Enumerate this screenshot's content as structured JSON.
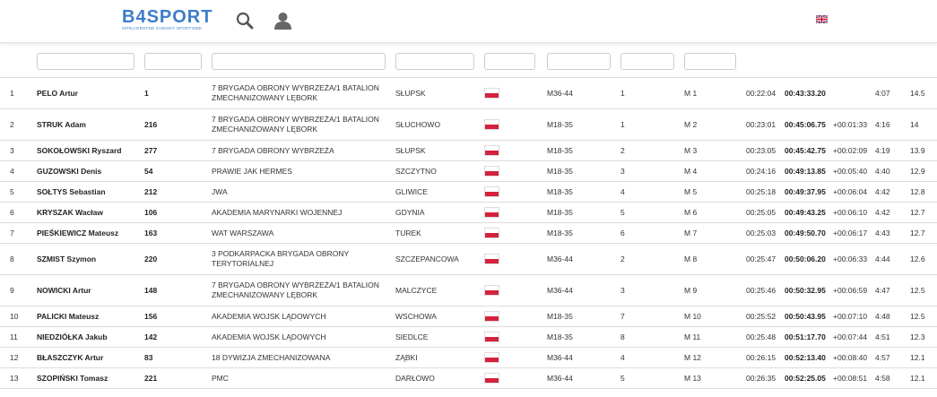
{
  "header": {
    "logo": "B4SPORT",
    "tagline": "INTELIGENTNE ZAWODY SPORTOWE"
  },
  "table": {
    "rows": [
      {
        "place": "1",
        "name": "PELO Artur",
        "bib": "1",
        "team": "7 BRYGADA OBRONY WYBRZEŻA/1 BATALION ZMECHANIZOWANY LĘBORK",
        "city": "SŁUPSK",
        "category": "M36-44",
        "category_place": "1",
        "gender_place": "M 1",
        "split": "00:22:04",
        "time": "00:43:33.20",
        "pace": "4:07",
        "speed": "14.5"
      },
      {
        "place": "2",
        "name": "STRUK Adam",
        "bib": "216",
        "team": "7 BRYGADA OBRONY WYBRZEŻA/1 BATALION ZMECHANIZOWANY LĘBORK",
        "city": "SŁUCHOWO",
        "category": "M18-35",
        "category_place": "1",
        "gender_place": "M 2",
        "split": "00:23:01",
        "time": "00:45:06.75",
        "gap": "+00:01:33",
        "pace": "4:16",
        "speed": "14"
      },
      {
        "place": "3",
        "name": "SOKOŁOWSKI Ryszard",
        "bib": "277",
        "team": "7 BRYGADA OBRONY WYBRZEŻA",
        "city": "SŁUPSK",
        "category": "M18-35",
        "category_place": "2",
        "gender_place": "M 3",
        "split": "00:23:05",
        "time": "00:45:42.75",
        "gap": "+00:02:09",
        "pace": "4:19",
        "speed": "13.9"
      },
      {
        "place": "4",
        "name": "GUZOWSKI Denis",
        "bib": "54",
        "team": "PRAWIE JAK HERMES",
        "city": "SZCZYTNO",
        "category": "M18-35",
        "category_place": "3",
        "gender_place": "M 4",
        "split": "00:24:16",
        "time": "00:49:13.85",
        "gap": "+00:05:40",
        "pace": "4:40",
        "speed": "12.9"
      },
      {
        "place": "5",
        "name": "SOŁTYS Sebastian",
        "bib": "212",
        "team": "JWA",
        "city": "GLIWICE",
        "category": "M18-35",
        "category_place": "4",
        "gender_place": "M 5",
        "split": "00:25:18",
        "time": "00:49:37.95",
        "gap": "+00:06:04",
        "pace": "4:42",
        "speed": "12.8"
      },
      {
        "place": "6",
        "name": "KRYSZAK Wacław",
        "bib": "106",
        "team": "AKADEMIA MARYNARKI WOJENNEJ",
        "city": "GDYNIA",
        "category": "M18-35",
        "category_place": "5",
        "gender_place": "M 6",
        "split": "00:25:05",
        "time": "00:49:43.25",
        "gap": "+00:06:10",
        "pace": "4:42",
        "speed": "12.7"
      },
      {
        "place": "7",
        "name": "PIEŚKIEWICZ Mateusz",
        "bib": "163",
        "team": "WAT WARSZAWA",
        "city": "TUREK",
        "category": "M18-35",
        "category_place": "6",
        "gender_place": "M 7",
        "split": "00:25:03",
        "time": "00:49:50.70",
        "gap": "+00:06:17",
        "pace": "4:43",
        "speed": "12.7"
      },
      {
        "place": "8",
        "name": "SZMIST Szymon",
        "bib": "220",
        "team": "3 PODKARPACKA BRYGADA OBRONY TERYTORIALNEJ",
        "city": "SZCZEPANCOWA",
        "category": "M36-44",
        "category_place": "2",
        "gender_place": "M 8",
        "split": "00:25:47",
        "time": "00:50:06.20",
        "gap": "+00:06:33",
        "pace": "4:44",
        "speed": "12.6"
      },
      {
        "place": "9",
        "name": "NOWICKI Artur",
        "bib": "148",
        "team": "7 BRYGADA OBRONY WYBRZEŻA/1 BATALION ZMECHANIZOWANY LĘBORK",
        "city": "MALCZYCE",
        "category": "M36-44",
        "category_place": "3",
        "gender_place": "M 9",
        "split": "00:25:46",
        "time": "00:50:32.95",
        "gap": "+00:06:59",
        "pace": "4:47",
        "speed": "12.5"
      },
      {
        "place": "10",
        "name": "PALICKI Mateusz",
        "bib": "156",
        "team": "AKADEMIA WOJSK LĄDOWYCH",
        "city": "WSCHOWA",
        "category": "M18-35",
        "category_place": "7",
        "gender_place": "M 10",
        "split": "00:25:52",
        "time": "00:50:43.95",
        "gap": "+00:07:10",
        "pace": "4:48",
        "speed": "12.5"
      },
      {
        "place": "11",
        "name": "NIEDZIÓŁKA Jakub",
        "bib": "142",
        "team": "AKADEMIA WOJSK LĄDOWYCH",
        "city": "SIEDLCE",
        "category": "M18-35",
        "category_place": "8",
        "gender_place": "M 11",
        "split": "00:25:48",
        "time": "00:51:17.70",
        "gap": "+00:07:44",
        "pace": "4:51",
        "speed": "12.3"
      },
      {
        "place": "12",
        "name": "BŁASZCZYK Artur",
        "bib": "83",
        "team": "18 DYWIZJA ZMECHANIZOWANA",
        "city": "ZĄBKI",
        "category": "M36-44",
        "category_place": "4",
        "gender_place": "M 12",
        "split": "00:26:15",
        "time": "00:52:13.40",
        "gap": "+00:08:40",
        "pace": "4:57",
        "speed": "12.1"
      },
      {
        "place": "13",
        "name": "SZOPIŃSKI Tomasz",
        "bib": "221",
        "team": "PMC",
        "city": "DARŁOWO",
        "category": "M36-44",
        "category_place": "5",
        "gender_place": "M 13",
        "split": "00:26:35",
        "time": "00:52:25.05",
        "gap": "+00:08:51",
        "pace": "4:58",
        "speed": "12.1"
      }
    ]
  }
}
